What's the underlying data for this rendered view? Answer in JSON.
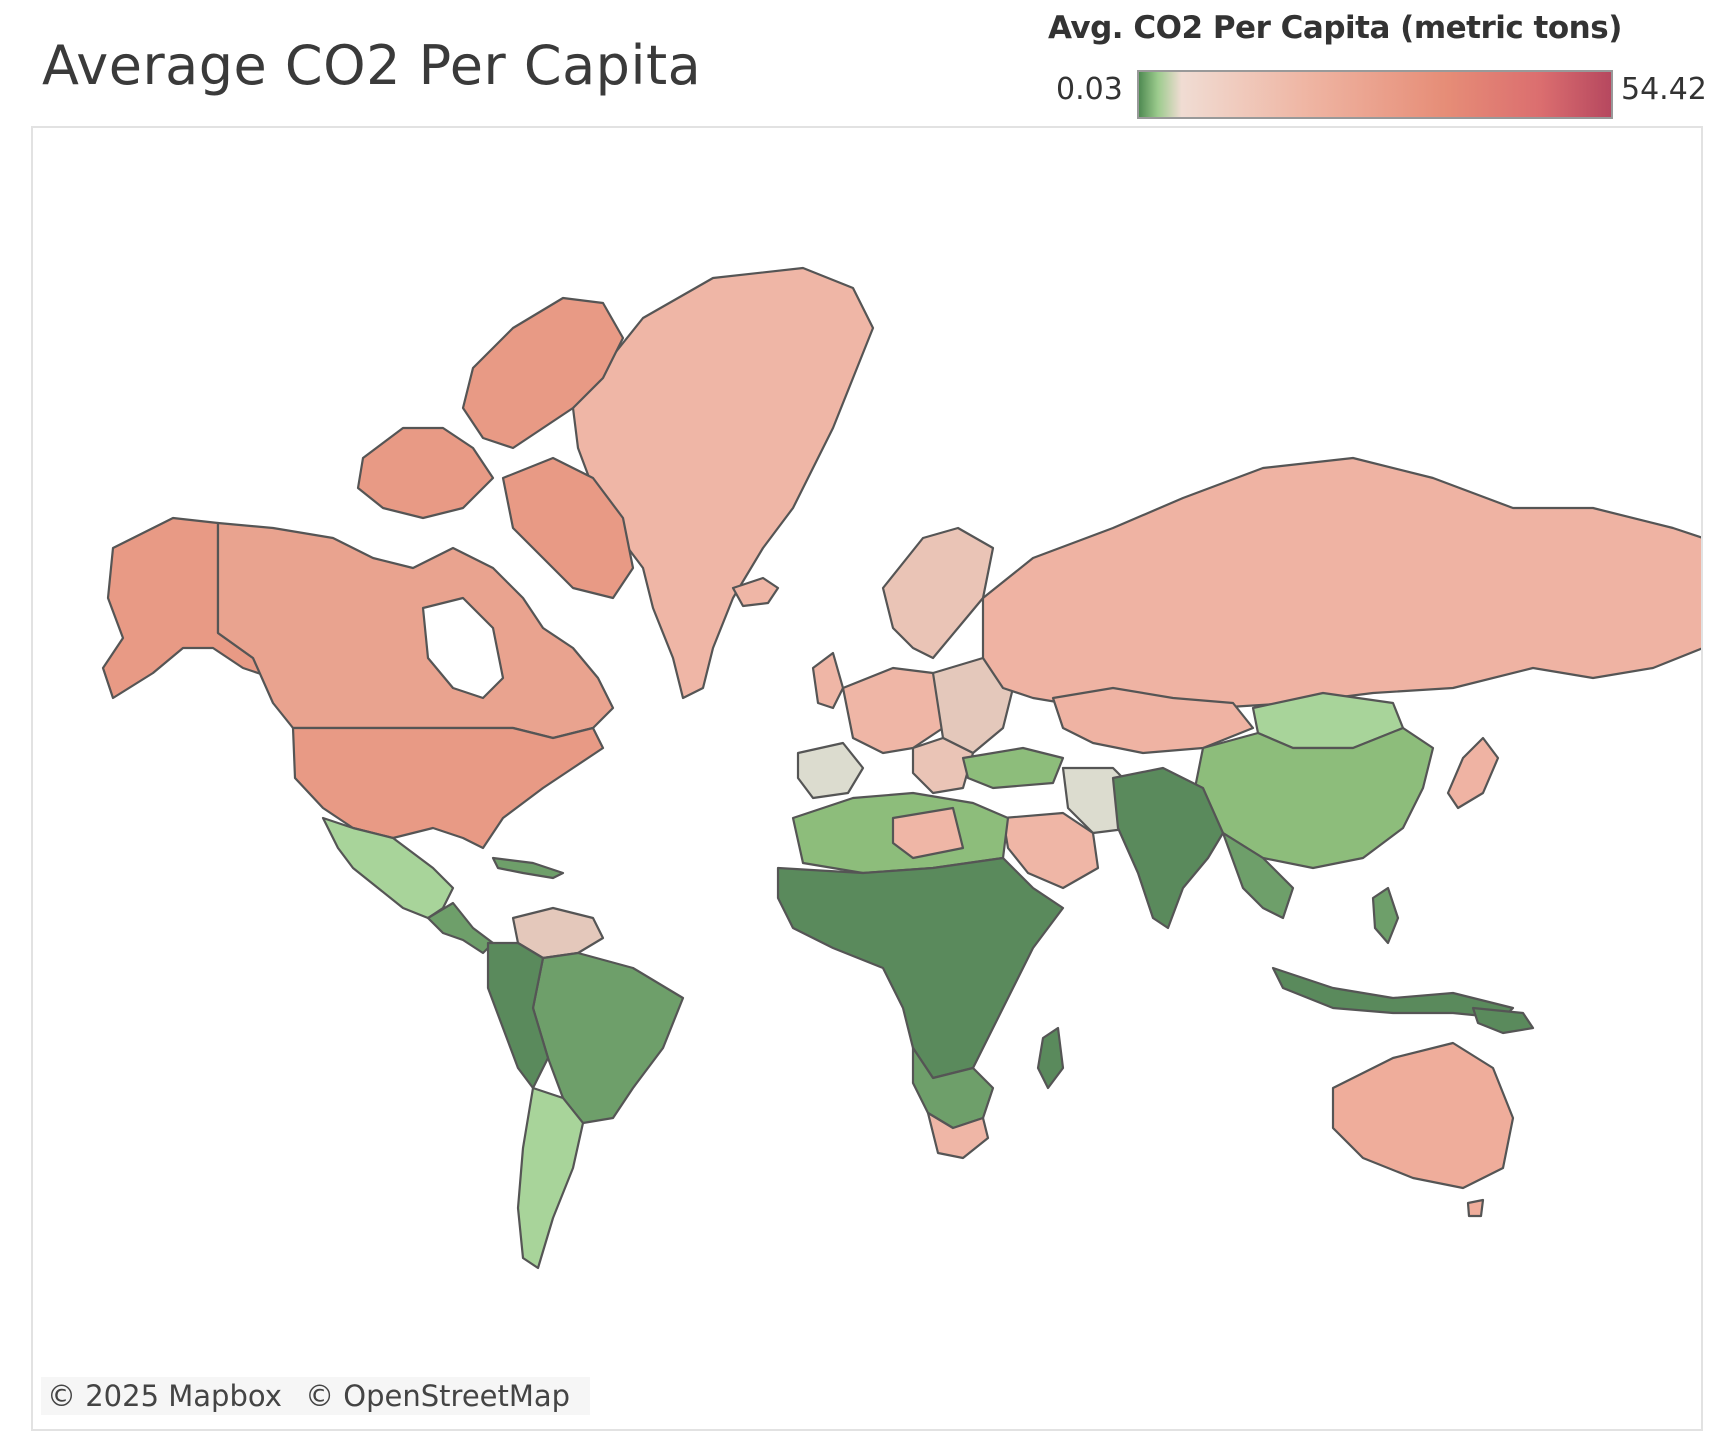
{
  "title": "Average CO2 Per Capita",
  "legend": {
    "title": "Avg. CO2 Per Capita (metric tons)",
    "min_label": "0.03",
    "max_label": "54.42",
    "min_value": 0.03,
    "max_value": 54.42,
    "palette": [
      "#4f8a52",
      "#9ccb8d",
      "#f0dcd3",
      "#efb6a4",
      "#e68d77",
      "#b6485f"
    ]
  },
  "attribution": {
    "mapbox": "© 2025 Mapbox",
    "osm": "© OpenStreetMap"
  },
  "colors": {
    "high": "#e89a85",
    "mid_high": "#efb3a3",
    "mid": "#eac4b6",
    "neutral": "#dcdccf",
    "low_light": "#a8d49a",
    "low": "#8dbd7b",
    "lower": "#6e9f6a",
    "lowest": "#5a8a5c"
  }
}
